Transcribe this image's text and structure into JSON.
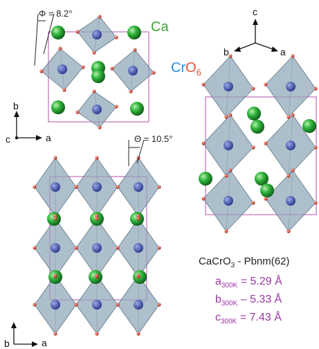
{
  "colors": {
    "octahedron_face": "#8fa6b8",
    "octahedron_edge": "#5d7384",
    "ca_atom": "#2fb33a",
    "cr_atom": "#4557b5",
    "o_atom": "#d93a2a",
    "cell_line": "#b34fae",
    "param_text": "#9a35a4",
    "ca_label": "#3aa832",
    "cr_label": "#2d8ad6",
    "o_label": "#e35335"
  },
  "legend": {
    "ca_label": "Ca",
    "cr_label": "Cr",
    "o_label": "O",
    "o_subscript": "6"
  },
  "angles": {
    "phi_text": "Φ = 8.2°",
    "theta_text": "Θ = 10.5°"
  },
  "axes_top": {
    "vertical": "b",
    "horizontal": "a",
    "out_of_plane": "c"
  },
  "axes_bottom": {
    "vertical": "b",
    "horizontal": "a"
  },
  "axes_right": {
    "up": "c",
    "left": "b",
    "right": "a"
  },
  "structure": {
    "formula": "CaCrO",
    "formula_subscript": "3",
    "space_group": " - Pbnm(62)"
  },
  "lattice": [
    {
      "axis": "a",
      "condition": "300K",
      "rel": "=",
      "value": "5.29 Å"
    },
    {
      "axis": "b",
      "condition": "300K",
      "rel": "–",
      "value": "5.33 Å"
    },
    {
      "axis": "c",
      "condition": "300K",
      "rel": "=",
      "value": "7.43 Å"
    }
  ]
}
